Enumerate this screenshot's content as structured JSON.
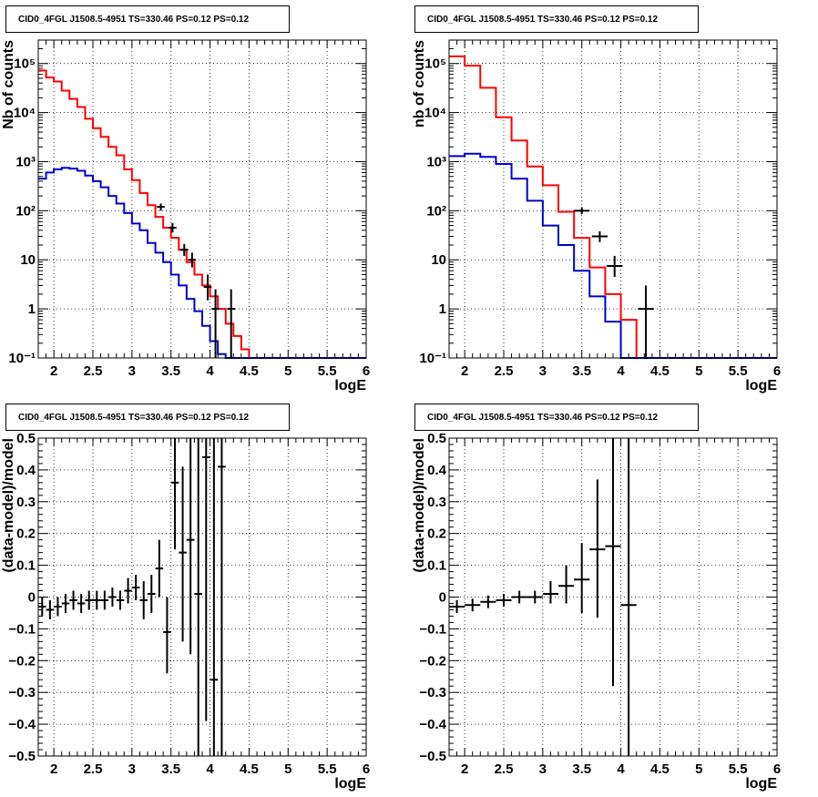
{
  "chart_data": [
    {
      "type": "histogram",
      "title": "CID0_4FGL J1508.5-4951 TS=330.46 PS=0.12 PS=0.12",
      "xlabel": "logE",
      "ylabel": "Nb of counts",
      "yscale": "log",
      "xlim": [
        1.8,
        6.0
      ],
      "ylim": [
        0.1,
        300000
      ],
      "grid": true,
      "x_ticks": [
        2,
        2.5,
        3,
        3.5,
        4,
        4.5,
        5,
        5.5,
        6
      ],
      "x_tick_labels": [
        "2",
        "2.5",
        "3",
        "3.5",
        "4",
        "4.5",
        "5",
        "5.5",
        "6"
      ],
      "y_ticks": [
        0.1,
        1,
        10,
        100,
        1000,
        10000,
        100000
      ],
      "y_tick_labels": [
        "10⁻¹",
        "1",
        "10",
        "10²",
        "10³",
        "10⁴",
        "10⁵"
      ],
      "series": [
        {
          "color": "#ff0000",
          "style": "step",
          "bin_edges": [
            1.8,
            1.9,
            2.0,
            2.1,
            2.2,
            2.3,
            2.4,
            2.5,
            2.6,
            2.7,
            2.8,
            2.9,
            3.0,
            3.1,
            3.2,
            3.3,
            3.4,
            3.5,
            3.6,
            3.7,
            3.8,
            3.9,
            4.0,
            4.1,
            4.2,
            4.3,
            4.4,
            4.5,
            4.6,
            4.7,
            4.8,
            4.9,
            5.0,
            5.1,
            5.2,
            5.3,
            5.4,
            5.5,
            5.6,
            5.7,
            5.8,
            5.9,
            6.0
          ],
          "values": [
            72000,
            52000,
            43000,
            28000,
            19000,
            13000,
            7500,
            4800,
            3200,
            2000,
            1350,
            700,
            420,
            230,
            130,
            75,
            45,
            28,
            16,
            9,
            5,
            3,
            1.8,
            1.0,
            0.5,
            0.28,
            0.15,
            0.1,
            0.1,
            0.1,
            0.1,
            0.1,
            0.1,
            0.1,
            0.1,
            0.1,
            0.1,
            0.1,
            0.1,
            0.1,
            0.1,
            0.1
          ]
        },
        {
          "color": "#0000cc",
          "style": "step",
          "bin_edges": [
            1.8,
            1.9,
            2.0,
            2.1,
            2.2,
            2.3,
            2.4,
            2.5,
            2.6,
            2.7,
            2.8,
            2.9,
            3.0,
            3.1,
            3.2,
            3.3,
            3.4,
            3.5,
            3.6,
            3.7,
            3.8,
            3.9,
            4.0,
            4.1,
            4.2,
            4.3,
            4.4,
            4.5,
            4.6,
            4.7,
            4.8,
            4.9,
            5.0,
            5.1,
            5.2,
            5.3,
            5.4,
            5.5,
            5.6,
            5.7,
            5.8,
            5.9,
            6.0
          ],
          "values": [
            450,
            600,
            700,
            750,
            720,
            650,
            520,
            400,
            300,
            200,
            140,
            90,
            55,
            40,
            22,
            14,
            9,
            5,
            3,
            1.6,
            0.9,
            0.45,
            0.22,
            0.12,
            0.1,
            0.1,
            0.1,
            0.1,
            0.1,
            0.1,
            0.1,
            0.1,
            0.1,
            0.1,
            0.1,
            0.1,
            0.1,
            0.1,
            0.1,
            0.1,
            0.1,
            0.1
          ]
        }
      ],
      "points": [
        {
          "x": 3.37,
          "y": 120,
          "xerr": 0.05,
          "ylo": 100,
          "yhi": 140
        },
        {
          "x": 3.52,
          "y": 45,
          "xerr": 0.05,
          "ylo": 36,
          "yhi": 56
        },
        {
          "x": 3.67,
          "y": 16,
          "xerr": 0.05,
          "ylo": 12,
          "yhi": 21
        },
        {
          "x": 3.77,
          "y": 10,
          "xerr": 0.05,
          "ylo": 7,
          "yhi": 14
        },
        {
          "x": 3.97,
          "y": 2.8,
          "xerr": 0.05,
          "ylo": 1.5,
          "yhi": 5
        },
        {
          "x": 4.07,
          "y": 1,
          "xerr": 0.05,
          "ylo": 0.1,
          "yhi": 2.5
        },
        {
          "x": 4.27,
          "y": 1,
          "xerr": 0.05,
          "ylo": 0.1,
          "yhi": 2.5
        }
      ]
    },
    {
      "type": "histogram",
      "title": "CID0_4FGL J1508.5-4951 TS=330.46 PS=0.12 PS=0.12",
      "xlabel": "logE",
      "ylabel": "nb of counts",
      "yscale": "log",
      "xlim": [
        1.8,
        6.0
      ],
      "ylim": [
        0.1,
        300000
      ],
      "grid": true,
      "x_ticks": [
        2,
        2.5,
        3,
        3.5,
        4,
        4.5,
        5,
        5.5,
        6
      ],
      "x_tick_labels": [
        "2",
        "2.5",
        "3",
        "3.5",
        "4",
        "4.5",
        "5",
        "5.5",
        "6"
      ],
      "y_ticks": [
        0.1,
        1,
        10,
        100,
        1000,
        10000,
        100000
      ],
      "y_tick_labels": [
        "10⁻¹",
        "1",
        "10",
        "10²",
        "10³",
        "10⁴",
        "10⁵"
      ],
      "series": [
        {
          "color": "#ff0000",
          "style": "step",
          "bin_edges": [
            1.8,
            2.0,
            2.2,
            2.4,
            2.6,
            2.8,
            3.0,
            3.2,
            3.4,
            3.6,
            3.8,
            4.0,
            4.2,
            4.4,
            4.6,
            4.8,
            5.0,
            5.2,
            5.4,
            5.6,
            5.8,
            6.0
          ],
          "values": [
            140000,
            90000,
            32000,
            8000,
            2700,
            800,
            330,
            95,
            28,
            7,
            2,
            0.6,
            0.1,
            0.1,
            0.1,
            0.1,
            0.1,
            0.1,
            0.1,
            0.1,
            0.1
          ]
        },
        {
          "color": "#0000cc",
          "style": "step",
          "bin_edges": [
            1.8,
            2.0,
            2.2,
            2.4,
            2.6,
            2.8,
            3.0,
            3.2,
            3.4,
            3.6,
            3.8,
            4.0,
            4.2,
            4.4,
            4.6,
            4.8,
            5.0,
            5.2,
            5.4,
            5.6,
            5.8,
            6.0
          ],
          "values": [
            1300,
            1450,
            1250,
            900,
            450,
            160,
            50,
            20,
            6,
            1.8,
            0.55,
            0.1,
            0.1,
            0.1,
            0.1,
            0.1,
            0.1,
            0.1,
            0.1,
            0.1,
            0.1
          ]
        }
      ],
      "points": [
        {
          "x": 3.5,
          "y": 100,
          "xerr": 0.1,
          "ylo": 85,
          "yhi": 118
        },
        {
          "x": 3.73,
          "y": 30,
          "xerr": 0.1,
          "ylo": 23,
          "yhi": 38
        },
        {
          "x": 3.92,
          "y": 7.5,
          "xerr": 0.1,
          "ylo": 4.5,
          "yhi": 12
        },
        {
          "x": 4.32,
          "y": 1,
          "xerr": 0.1,
          "ylo": 0.1,
          "yhi": 3
        }
      ]
    },
    {
      "type": "scatter",
      "title": "CID0_4FGL J1508.5-4951 TS=330.46 PS=0.12 PS=0.12",
      "xlabel": "logE",
      "ylabel": "(data-model)/model",
      "xlim": [
        1.8,
        6.0
      ],
      "ylim": [
        -0.5,
        0.5
      ],
      "grid": true,
      "x_ticks": [
        2,
        2.5,
        3,
        3.5,
        4,
        4.5,
        5,
        5.5,
        6
      ],
      "x_tick_labels": [
        "2",
        "2.5",
        "3",
        "3.5",
        "4",
        "4.5",
        "5",
        "5.5",
        "6"
      ],
      "y_ticks": [
        -0.5,
        -0.4,
        -0.3,
        -0.2,
        -0.1,
        0,
        0.1,
        0.2,
        0.3,
        0.4,
        0.5
      ],
      "y_tick_labels": [
        "−0.5",
        "−0.4",
        "−0.3",
        "−0.2",
        "−0.1",
        "0",
        "0.1",
        "0.2",
        "0.3",
        "0.4",
        "0.5"
      ],
      "points": [
        {
          "x": 1.85,
          "y": -0.03,
          "xerr": 0.05,
          "ylo": -0.06,
          "yhi": 0.0
        },
        {
          "x": 1.95,
          "y": -0.04,
          "xerr": 0.05,
          "ylo": -0.07,
          "yhi": -0.01
        },
        {
          "x": 2.05,
          "y": -0.03,
          "xerr": 0.05,
          "ylo": -0.06,
          "yhi": 0.0
        },
        {
          "x": 2.15,
          "y": -0.02,
          "xerr": 0.05,
          "ylo": -0.05,
          "yhi": 0.01
        },
        {
          "x": 2.25,
          "y": -0.01,
          "xerr": 0.05,
          "ylo": -0.04,
          "yhi": 0.02
        },
        {
          "x": 2.35,
          "y": -0.02,
          "xerr": 0.05,
          "ylo": -0.05,
          "yhi": 0.01
        },
        {
          "x": 2.45,
          "y": -0.01,
          "xerr": 0.05,
          "ylo": -0.04,
          "yhi": 0.02
        },
        {
          "x": 2.55,
          "y": -0.01,
          "xerr": 0.05,
          "ylo": -0.04,
          "yhi": 0.02
        },
        {
          "x": 2.65,
          "y": -0.01,
          "xerr": 0.05,
          "ylo": -0.04,
          "yhi": 0.02
        },
        {
          "x": 2.75,
          "y": 0.0,
          "xerr": 0.05,
          "ylo": -0.03,
          "yhi": 0.03
        },
        {
          "x": 2.85,
          "y": -0.01,
          "xerr": 0.05,
          "ylo": -0.04,
          "yhi": 0.02
        },
        {
          "x": 2.95,
          "y": 0.02,
          "xerr": 0.05,
          "ylo": -0.02,
          "yhi": 0.06
        },
        {
          "x": 3.05,
          "y": 0.03,
          "xerr": 0.05,
          "ylo": -0.01,
          "yhi": 0.07
        },
        {
          "x": 3.15,
          "y": -0.01,
          "xerr": 0.05,
          "ylo": -0.07,
          "yhi": 0.05
        },
        {
          "x": 3.25,
          "y": 0.01,
          "xerr": 0.05,
          "ylo": -0.05,
          "yhi": 0.07
        },
        {
          "x": 3.35,
          "y": 0.09,
          "xerr": 0.05,
          "ylo": 0.0,
          "yhi": 0.18
        },
        {
          "x": 3.45,
          "y": -0.11,
          "xerr": 0.05,
          "ylo": -0.24,
          "yhi": 0.0
        },
        {
          "x": 3.55,
          "y": 0.36,
          "xerr": 0.05,
          "ylo": 0.15,
          "yhi": 0.5
        },
        {
          "x": 3.65,
          "y": 0.14,
          "xerr": 0.05,
          "ylo": -0.14,
          "yhi": 0.41
        },
        {
          "x": 3.75,
          "y": 0.18,
          "xerr": 0.05,
          "ylo": -0.18,
          "yhi": 0.5
        },
        {
          "x": 3.85,
          "y": 0.01,
          "xerr": 0.05,
          "ylo": -0.5,
          "yhi": 0.5
        },
        {
          "x": 3.95,
          "y": 0.44,
          "xerr": 0.05,
          "ylo": -0.39,
          "yhi": 0.5
        },
        {
          "x": 4.05,
          "y": -0.26,
          "xerr": 0.05,
          "ylo": -0.5,
          "yhi": 0.5
        },
        {
          "x": 4.15,
          "y": 0.41,
          "xerr": 0.05,
          "ylo": -0.5,
          "yhi": 0.5
        }
      ]
    },
    {
      "type": "scatter",
      "title": "CID0_4FGL J1508.5-4951 TS=330.46 PS=0.12 PS=0.12",
      "xlabel": "logE",
      "ylabel": "(data-model)/model",
      "xlim": [
        1.8,
        6.0
      ],
      "ylim": [
        -0.5,
        0.5
      ],
      "grid": true,
      "x_ticks": [
        2,
        2.5,
        3,
        3.5,
        4,
        4.5,
        5,
        5.5,
        6
      ],
      "x_tick_labels": [
        "2",
        "2.5",
        "3",
        "3.5",
        "4",
        "4.5",
        "5",
        "5.5",
        "6"
      ],
      "y_ticks": [
        -0.5,
        -0.4,
        -0.3,
        -0.2,
        -0.1,
        0,
        0.1,
        0.2,
        0.3,
        0.4,
        0.5
      ],
      "y_tick_labels": [
        "−0.5",
        "−0.4",
        "−0.3",
        "−0.2",
        "−0.1",
        "0",
        "0.1",
        "0.2",
        "0.3",
        "0.4",
        "0.5"
      ],
      "points": [
        {
          "x": 1.9,
          "y": -0.03,
          "xerr": 0.1,
          "ylo": -0.05,
          "yhi": -0.01
        },
        {
          "x": 2.1,
          "y": -0.025,
          "xerr": 0.1,
          "ylo": -0.045,
          "yhi": -0.005
        },
        {
          "x": 2.3,
          "y": -0.015,
          "xerr": 0.1,
          "ylo": -0.035,
          "yhi": 0.005
        },
        {
          "x": 2.5,
          "y": -0.01,
          "xerr": 0.1,
          "ylo": -0.03,
          "yhi": 0.01
        },
        {
          "x": 2.7,
          "y": 0.0,
          "xerr": 0.1,
          "ylo": -0.02,
          "yhi": 0.02
        },
        {
          "x": 2.9,
          "y": 0.0,
          "xerr": 0.1,
          "ylo": -0.02,
          "yhi": 0.02
        },
        {
          "x": 3.1,
          "y": 0.01,
          "xerr": 0.1,
          "ylo": -0.02,
          "yhi": 0.05
        },
        {
          "x": 3.3,
          "y": 0.035,
          "xerr": 0.1,
          "ylo": -0.02,
          "yhi": 0.1
        },
        {
          "x": 3.5,
          "y": 0.055,
          "xerr": 0.1,
          "ylo": -0.05,
          "yhi": 0.17
        },
        {
          "x": 3.7,
          "y": 0.15,
          "xerr": 0.1,
          "ylo": -0.065,
          "yhi": 0.37
        },
        {
          "x": 3.9,
          "y": 0.16,
          "xerr": 0.1,
          "ylo": -0.28,
          "yhi": 0.5
        },
        {
          "x": 4.1,
          "y": -0.025,
          "xerr": 0.1,
          "ylo": -0.5,
          "yhi": 0.5
        }
      ]
    }
  ]
}
